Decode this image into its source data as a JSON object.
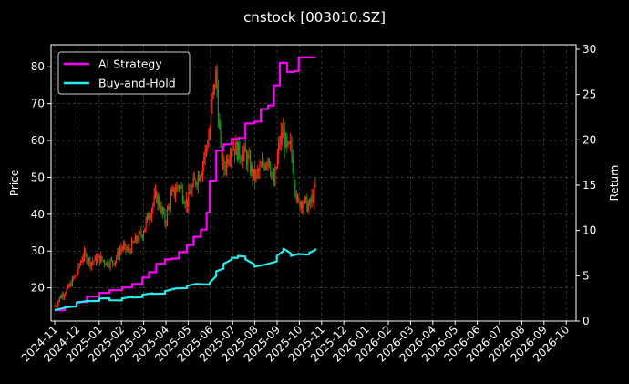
{
  "chart_data": {
    "type": "line",
    "title": "cnstock [003010.SZ]",
    "ylabel": "Price",
    "y2label": "Return",
    "grid": true,
    "legend_position": "top-left",
    "ylim": [
      11,
      86
    ],
    "y2lim": [
      0,
      30.5
    ],
    "yticks": [
      "20",
      "30",
      "40",
      "50",
      "60",
      "70",
      "80"
    ],
    "y2ticks": [
      "0",
      "5",
      "10",
      "15",
      "20",
      "25",
      "30"
    ],
    "xticks": [
      "2024-11",
      "2024-12",
      "2025-01",
      "2025-02",
      "2025-03",
      "2025-04",
      "2025-05",
      "2025-06",
      "2025-07",
      "2025-08",
      "2025-09",
      "2025-10",
      "2025-11",
      "2025-12",
      "2026-01",
      "2026-02",
      "2026-03",
      "2026-04",
      "2026-05",
      "2026-06",
      "2026-07",
      "2026-08",
      "2026-09",
      "2026-10"
    ],
    "colors": {
      "background": "#000000",
      "grid": "#555555",
      "candle_up": "#ff2a1a",
      "candle_down": "#1f8f1f",
      "ai_strategy": "#ff00ff",
      "buy_and_hold": "#22eeee"
    },
    "series": [
      {
        "name": "AI Strategy",
        "axis": "right",
        "x": [
          "2024-11-01",
          "2024-11-15",
          "2024-12-01",
          "2024-12-15",
          "2025-01-01",
          "2025-01-15",
          "2025-02-01",
          "2025-02-15",
          "2025-03-01",
          "2025-03-10",
          "2025-03-20",
          "2025-04-01",
          "2025-04-10",
          "2025-04-20",
          "2025-05-01",
          "2025-05-10",
          "2025-05-20",
          "2025-05-28",
          "2025-06-01",
          "2025-06-10",
          "2025-06-20",
          "2025-07-01",
          "2025-07-10",
          "2025-07-20",
          "2025-08-01",
          "2025-08-10",
          "2025-08-20",
          "2025-08-28",
          "2025-09-05",
          "2025-09-15",
          "2025-09-25",
          "2025-10-01",
          "2025-10-15",
          "2025-10-24"
        ],
        "values": [
          1.2,
          1.6,
          2.1,
          2.7,
          3.1,
          3.4,
          3.7,
          4.1,
          4.8,
          5.4,
          6.3,
          6.8,
          6.9,
          7.6,
          8.4,
          9.3,
          10.1,
          12.0,
          15.5,
          18.8,
          19.5,
          20.1,
          20.2,
          21.8,
          22.0,
          23.4,
          23.8,
          26.0,
          28.5,
          27.5,
          27.6,
          29.1,
          29.1,
          29.1
        ]
      },
      {
        "name": "Buy-and-Hold",
        "axis": "right",
        "x": [
          "2024-11-01",
          "2024-11-15",
          "2024-12-01",
          "2024-12-15",
          "2025-01-01",
          "2025-01-15",
          "2025-02-01",
          "2025-02-15",
          "2025-03-01",
          "2025-03-15",
          "2025-04-01",
          "2025-04-15",
          "2025-05-01",
          "2025-05-15",
          "2025-06-01",
          "2025-06-10",
          "2025-06-20",
          "2025-07-01",
          "2025-07-10",
          "2025-07-20",
          "2025-08-01",
          "2025-08-15",
          "2025-09-01",
          "2025-09-10",
          "2025-09-20",
          "2025-10-01",
          "2025-10-15",
          "2025-10-24"
        ],
        "values": [
          1.2,
          1.5,
          2.0,
          2.2,
          2.5,
          2.3,
          2.5,
          2.6,
          2.9,
          3.0,
          3.3,
          3.6,
          3.9,
          4.1,
          4.2,
          5.5,
          6.3,
          7.0,
          7.2,
          6.8,
          6.0,
          6.2,
          7.2,
          8.0,
          7.2,
          7.4,
          7.5,
          8.0
        ]
      }
    ],
    "price_series": {
      "axis": "left",
      "x": [
        "2024-11-01",
        "2024-11-10",
        "2024-11-20",
        "2024-12-01",
        "2024-12-10",
        "2024-12-20",
        "2025-01-01",
        "2025-01-10",
        "2025-01-20",
        "2025-02-01",
        "2025-02-10",
        "2025-02-20",
        "2025-03-01",
        "2025-03-10",
        "2025-03-20",
        "2025-04-01",
        "2025-04-10",
        "2025-04-20",
        "2025-05-01",
        "2025-05-10",
        "2025-05-20",
        "2025-06-01",
        "2025-06-05",
        "2025-06-10",
        "2025-06-15",
        "2025-06-20",
        "2025-07-01",
        "2025-07-10",
        "2025-07-20",
        "2025-08-01",
        "2025-08-10",
        "2025-08-20",
        "2025-08-28",
        "2025-09-05",
        "2025-09-10",
        "2025-09-15",
        "2025-09-20",
        "2025-09-30",
        "2025-10-05",
        "2025-10-10",
        "2025-10-15",
        "2025-10-24"
      ],
      "values": [
        15,
        18,
        20,
        24,
        29,
        27,
        28,
        27,
        27,
        31,
        30,
        33,
        35,
        40,
        45,
        38,
        45,
        48,
        43,
        48,
        52,
        62,
        72,
        78,
        60,
        52,
        59,
        57,
        56,
        50,
        52,
        56,
        48,
        60,
        62,
        57,
        58,
        42,
        44,
        43,
        42,
        47
      ]
    }
  }
}
